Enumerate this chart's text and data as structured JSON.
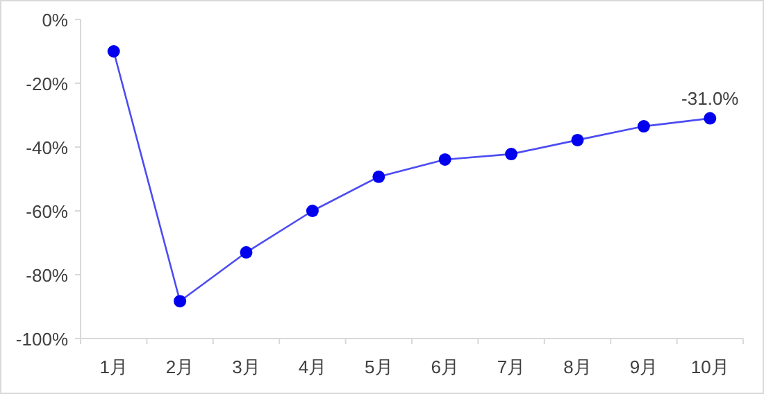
{
  "chart_data": {
    "type": "line",
    "categories": [
      "1月",
      "2月",
      "3月",
      "4月",
      "5月",
      "6月",
      "7月",
      "8月",
      "9月",
      "10月"
    ],
    "series": [
      {
        "color": "#0000ee",
        "values": [
          -10,
          -88.3,
          -73,
          -60,
          -49.3,
          -43.9,
          -42.2,
          -37.8,
          -33.5,
          -31.0
        ],
        "value_labels": [
          null,
          null,
          null,
          null,
          null,
          null,
          null,
          null,
          null,
          "-31.0%"
        ]
      }
    ],
    "ylim": [
      -100,
      0
    ],
    "yticks": [
      {
        "value": -100,
        "label": "-100%"
      },
      {
        "value": -80,
        "label": "-80%"
      },
      {
        "value": -60,
        "label": "-60%"
      },
      {
        "value": -40,
        "label": "-40%"
      },
      {
        "value": -20,
        "label": "-20%"
      },
      {
        "value": 0,
        "label": "0%"
      }
    ],
    "marker": "circle",
    "grid": false
  }
}
